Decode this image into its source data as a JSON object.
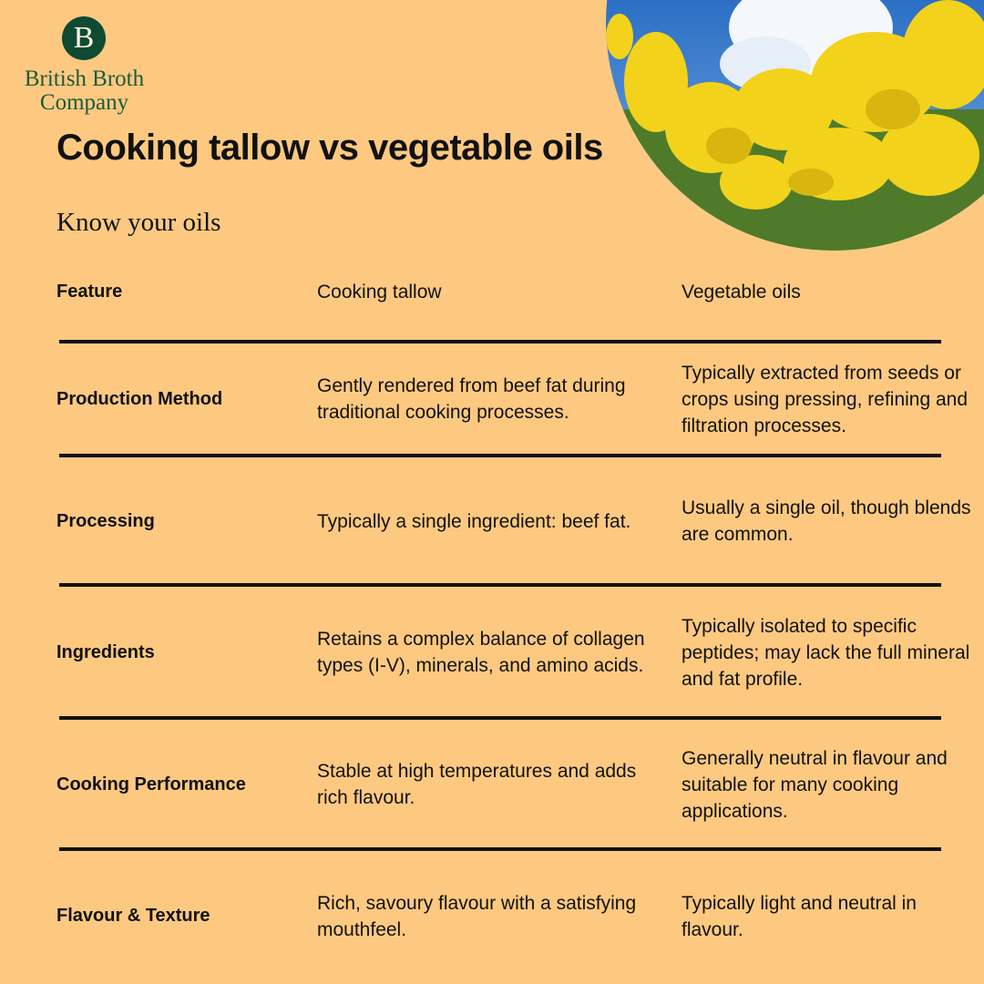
{
  "brand": {
    "logo_letter": "B",
    "name_line1": "British Broth",
    "name_line2": "Company"
  },
  "title": "Cooking tallow vs vegetable oils",
  "subtitle": "Know your oils",
  "table": {
    "header": [
      "Feature",
      "Cooking tallow",
      "Vegetable oils"
    ],
    "rows": [
      [
        "Production Method",
        "Gently rendered from beef fat during traditional cooking processes.",
        "Typically extracted from seeds or crops using pressing, refining and filtration processes."
      ],
      [
        "Processing",
        "Typically a single ingredient: beef fat.",
        "Usually a single oil, though blends are common."
      ],
      [
        "Ingredients",
        "Retains a complex balance of collagen types (I-V), minerals, and amino acids.",
        "Typically isolated to specific peptides; may lack the full mineral and fat profile."
      ],
      [
        "Cooking Performance",
        "Stable at high temperatures and adds rich flavour.",
        "Generally neutral in flavour and suitable for many cooking applications."
      ],
      [
        "Flavour & Texture",
        "Rich, savoury flavour with a satisfying mouthfeel.",
        "Typically light and neutral in flavour."
      ]
    ]
  }
}
